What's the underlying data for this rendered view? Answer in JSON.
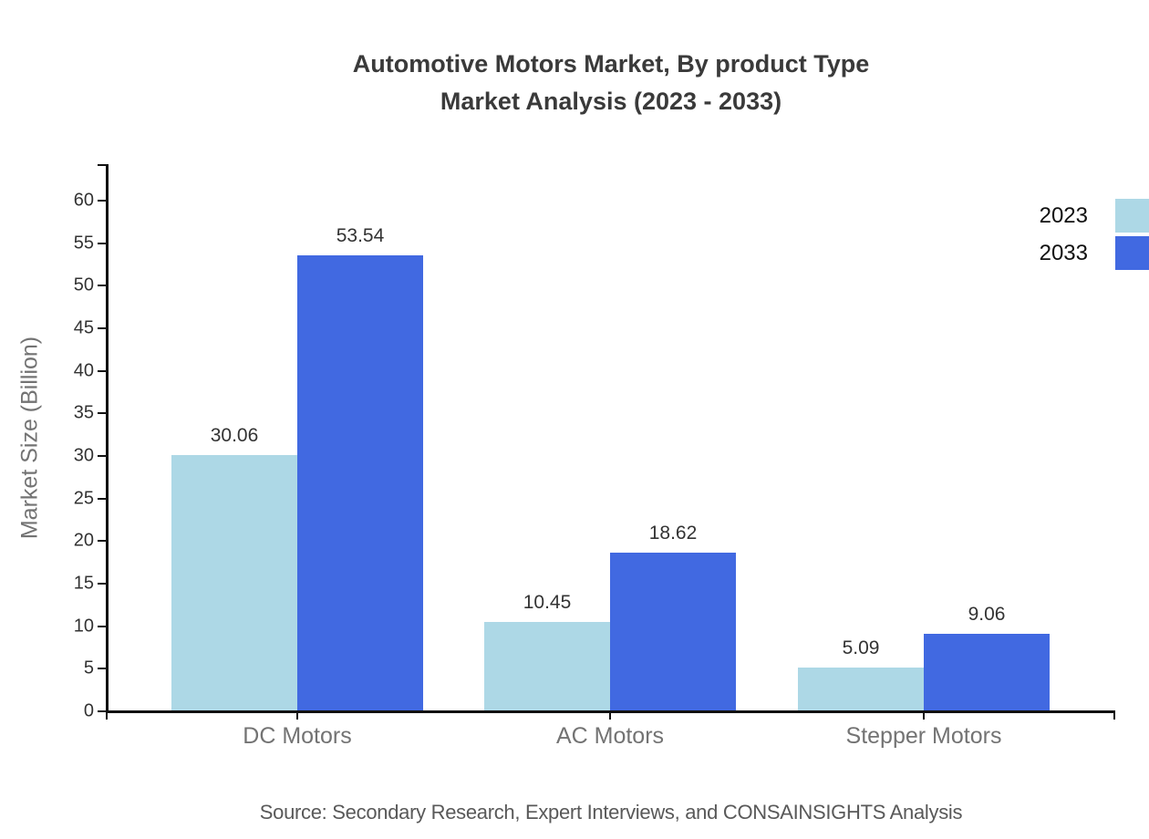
{
  "title": {
    "line1": "Automotive Motors Market, By product Type",
    "line2": "Market Analysis (2023 - 2033)"
  },
  "chart_data": {
    "type": "bar",
    "categories": [
      "DC Motors",
      "AC Motors",
      "Stepper Motors"
    ],
    "series": [
      {
        "name": "2023",
        "color": "#ADD8E6",
        "values": [
          30.06,
          10.45,
          5.09
        ]
      },
      {
        "name": "2033",
        "color": "#4169E1",
        "values": [
          53.54,
          18.62,
          9.06
        ]
      }
    ],
    "value_labels": [
      [
        "30.06",
        "10.45",
        "5.09"
      ],
      [
        "53.54",
        "18.62",
        "9.06"
      ]
    ],
    "ylabel": "Market Size (Billion)",
    "ylim": [
      0,
      60
    ],
    "ytick_step": 5,
    "grid": false,
    "legend_position": "top-right"
  },
  "source": "Source: Secondary Research, Expert Interviews, and CONSAINSIGHTS Analysis",
  "colors": {
    "series_2023": "#ADD8E6",
    "series_2033": "#4169E1",
    "title_text": "#3a3a3a",
    "axis": "#111111",
    "tick_label": "#333333",
    "category_label": "#737373",
    "source_text": "#595959"
  }
}
